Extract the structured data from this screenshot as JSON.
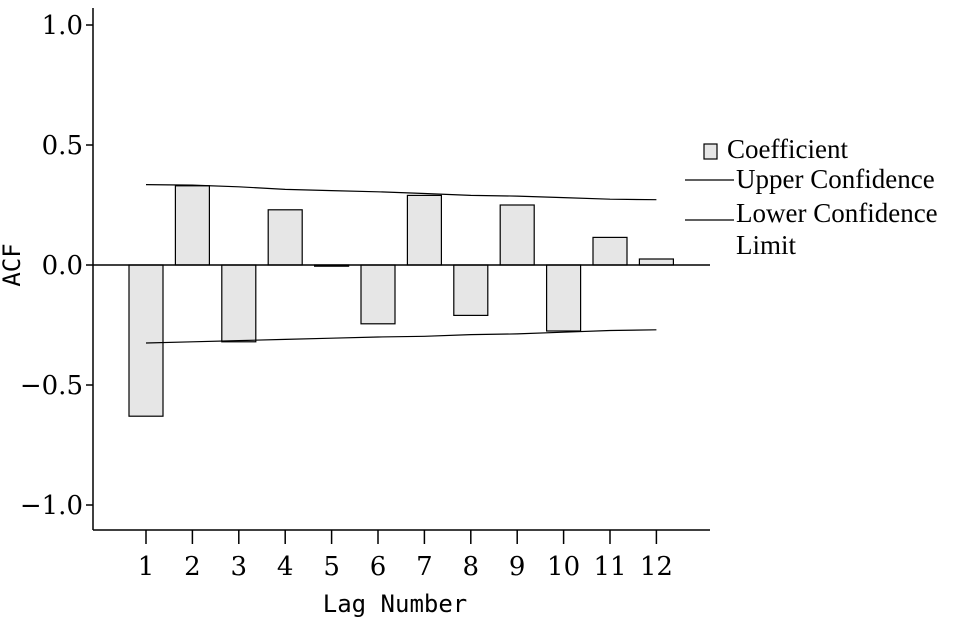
{
  "chart_data": {
    "type": "bar",
    "xlabel": "Lag Number",
    "ylabel": "ACF",
    "ylim": [
      -1.1,
      1.1
    ],
    "yticks": [
      1.0,
      0.5,
      0.0,
      -0.5,
      -1.0
    ],
    "ytick_labels": [
      "1.0",
      "0.5",
      "0.0",
      "−0.5",
      "−1.0"
    ],
    "categories": [
      "1",
      "2",
      "3",
      "4",
      "5",
      "6",
      "7",
      "8",
      "9",
      "10",
      "11",
      "12"
    ],
    "series": [
      {
        "name": "Coefficient",
        "values": [
          -0.63,
          0.33,
          -0.32,
          0.23,
          -0.005,
          -0.245,
          0.29,
          -0.21,
          0.25,
          -0.275,
          0.115,
          0.025
        ]
      },
      {
        "name": "Upper Confidence",
        "values": [
          0.335,
          0.333,
          0.326,
          0.315,
          0.31,
          0.305,
          0.298,
          0.29,
          0.287,
          0.281,
          0.274,
          0.272
        ]
      },
      {
        "name": "Lower Confidence Limit",
        "values": [
          -0.325,
          -0.32,
          -0.315,
          -0.31,
          -0.305,
          -0.3,
          -0.297,
          -0.29,
          -0.287,
          -0.28,
          -0.273,
          -0.27
        ]
      }
    ],
    "legend_position": "right",
    "grid": false,
    "colors": {
      "bar_fill": "#e6e6e6",
      "bar_stroke": "#000000",
      "line": "#000000"
    }
  }
}
